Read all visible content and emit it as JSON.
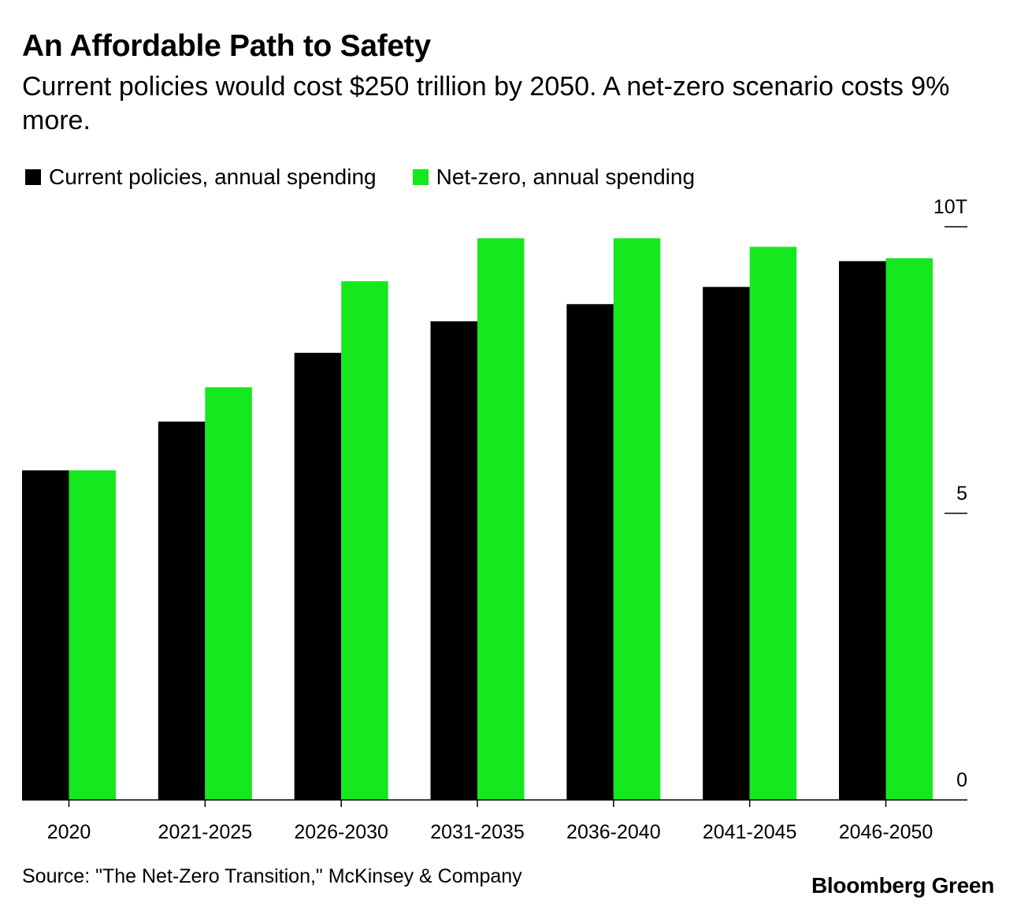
{
  "header": {
    "title": "An Affordable Path to Safety",
    "subtitle": "Current policies would cost $250 trillion by 2050. A net-zero scenario costs 9% more."
  },
  "footer": {
    "source": "Source: \"The Net-Zero Transition,\" McKinsey & Company",
    "brand": "Bloomberg Green"
  },
  "chart_data": {
    "type": "bar",
    "title": "An Affordable Path to Safety",
    "subtitle": "Current policies would cost $250 trillion by 2050. A net-zero scenario costs 9% more.",
    "xlabel": "",
    "ylabel": "",
    "categories": [
      "2020",
      "2021-2025",
      "2026-2030",
      "2031-2035",
      "2036-2040",
      "2041-2045",
      "2046-2050"
    ],
    "series": [
      {
        "name": "Current policies, annual spending",
        "color": "#000000",
        "values": [
          5.75,
          6.6,
          7.8,
          8.35,
          8.65,
          8.95,
          9.4
        ]
      },
      {
        "name": "Net-zero, annual spending",
        "color": "#15E81F",
        "values": [
          5.75,
          7.2,
          9.05,
          9.8,
          9.8,
          9.65,
          9.45
        ]
      }
    ],
    "ylim": [
      0,
      10
    ],
    "y_ticks": [
      {
        "value": 0,
        "label": "0"
      },
      {
        "value": 5,
        "label": "5"
      },
      {
        "value": 10,
        "label": "10T"
      }
    ],
    "y_axis_position": "right",
    "legend_position": "top-left",
    "grid": false
  }
}
